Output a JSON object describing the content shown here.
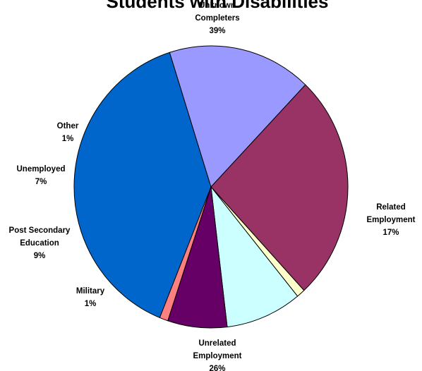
{
  "chart_data": {
    "type": "pie",
    "title": "Students with Disabilities",
    "slices": [
      {
        "label_lines": [
          "Unknown",
          "Completers",
          "39%"
        ],
        "value": 39,
        "color": "#0066cc"
      },
      {
        "label_lines": [
          "Related",
          "Employment",
          "17%"
        ],
        "value": 17,
        "color": "#9999ff"
      },
      {
        "label_lines": [
          "Unrelated",
          "Employment",
          "26%"
        ],
        "value": 26,
        "color": "#993366"
      },
      {
        "label_lines": [
          "Military",
          "1%"
        ],
        "value": 1,
        "color": "#ffffcc"
      },
      {
        "label_lines": [
          "Post Secondary",
          "Education",
          "9%"
        ],
        "value": 9,
        "color": "#ccffff"
      },
      {
        "label_lines": [
          "Unemployed",
          "7%"
        ],
        "value": 7,
        "color": "#660066"
      },
      {
        "label_lines": [
          "Other",
          "1%"
        ],
        "value": 1,
        "color": "#ff8080"
      }
    ]
  }
}
